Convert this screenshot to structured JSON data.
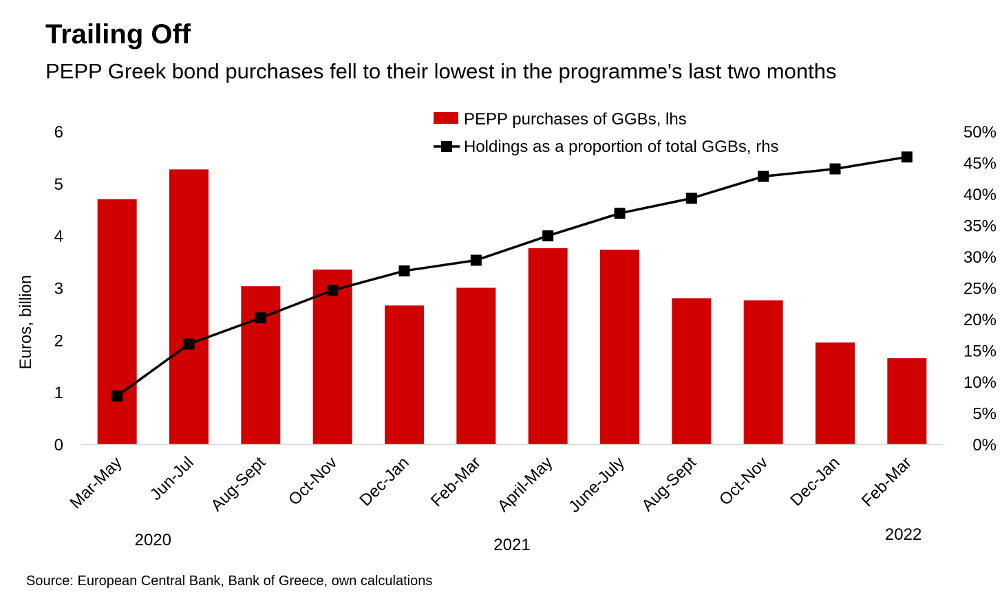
{
  "title": "Trailing Off",
  "subtitle": "PEPP Greek bond purchases fell to their lowest in the programme's last two months",
  "source": "Source: European Central Bank, Bank of Greece, own calculations",
  "chart_data": {
    "type": "bar",
    "categories": [
      "Mar-May",
      "Jun-Jul",
      "Aug-Sept",
      "Oct-Nov",
      "Dec-Jan",
      "Feb-Mar",
      "April-May",
      "June-July",
      "Aug-Sept",
      "Oct-Nov",
      "Dec-Jan",
      "Feb-Mar"
    ],
    "year_labels": [
      {
        "label": "2020",
        "category_index": 0.5
      },
      {
        "label": "2021",
        "category_index": 5.5
      },
      {
        "label": "2022",
        "category_index": 10.95
      }
    ],
    "series": [
      {
        "name": "PEPP purchases of GGBs, lhs",
        "type": "bar",
        "axis": "left",
        "color": "#d10000",
        "values": [
          4.7,
          5.27,
          3.03,
          3.35,
          2.66,
          3.0,
          3.76,
          3.73,
          2.8,
          2.76,
          1.95,
          1.65
        ]
      },
      {
        "name": "Holdings as a proportion of total GGBs, rhs",
        "type": "line",
        "axis": "right",
        "color": "#000000",
        "values": [
          7.7,
          16.0,
          20.2,
          24.6,
          27.7,
          29.4,
          33.3,
          36.9,
          39.3,
          42.8,
          44.0,
          45.9
        ]
      }
    ],
    "ylabel": "Euros, billion",
    "y_left": {
      "min": 0,
      "max": 6,
      "step": 1,
      "ticks": [
        "0",
        "1",
        "2",
        "3",
        "4",
        "5",
        "6"
      ]
    },
    "y_right": {
      "min": 0,
      "max": 50,
      "step": 5,
      "ticks": [
        "0%",
        "5%",
        "10%",
        "15%",
        "20%",
        "25%",
        "30%",
        "35%",
        "40%",
        "45%",
        "50%"
      ]
    },
    "grid": false,
    "legend_position": "top-center"
  }
}
